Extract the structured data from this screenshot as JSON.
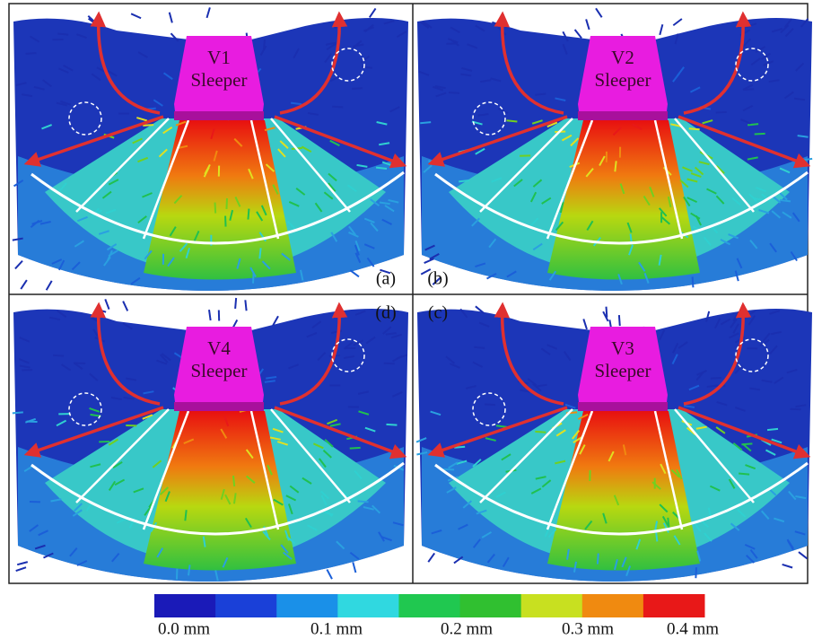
{
  "panels": [
    {
      "label": "(a)",
      "sleeper": [
        "V1",
        "Sleeper"
      ]
    },
    {
      "label": "(b)",
      "sleeper": [
        "V2",
        "Sleeper"
      ]
    },
    {
      "label": "(d)",
      "sleeper": [
        "V4",
        "Sleeper"
      ]
    },
    {
      "label": "(c)",
      "sleeper": [
        "V3",
        "Sleeper"
      ]
    }
  ],
  "colorbar": {
    "labels": [
      "0.0 mm",
      "0.1 mm",
      "0.2 mm",
      "0.3 mm",
      "0.4 mm"
    ]
  }
}
